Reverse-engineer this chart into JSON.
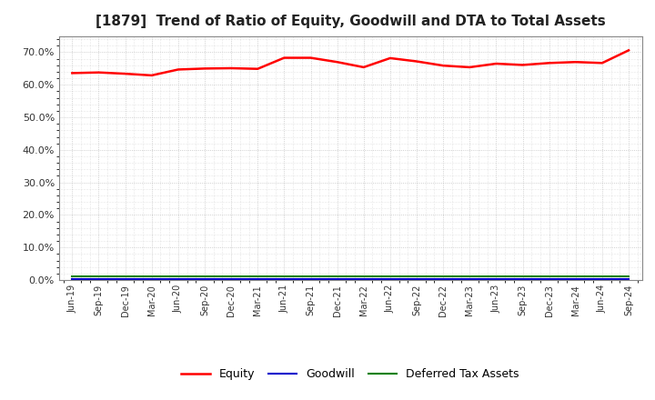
{
  "title": "[1879]  Trend of Ratio of Equity, Goodwill and DTA to Total Assets",
  "x_labels": [
    "Jun-19",
    "Sep-19",
    "Dec-19",
    "Mar-20",
    "Jun-20",
    "Sep-20",
    "Dec-20",
    "Mar-21",
    "Jun-21",
    "Sep-21",
    "Dec-21",
    "Mar-22",
    "Jun-22",
    "Sep-22",
    "Dec-22",
    "Mar-23",
    "Jun-23",
    "Sep-23",
    "Dec-23",
    "Mar-24",
    "Jun-24",
    "Sep-24"
  ],
  "equity": [
    0.636,
    0.638,
    0.634,
    0.629,
    0.647,
    0.65,
    0.651,
    0.649,
    0.683,
    0.683,
    0.67,
    0.654,
    0.682,
    0.672,
    0.659,
    0.654,
    0.665,
    0.661,
    0.667,
    0.67,
    0.667,
    0.706
  ],
  "goodwill": [
    0.003,
    0.003,
    0.003,
    0.003,
    0.003,
    0.003,
    0.003,
    0.003,
    0.003,
    0.003,
    0.003,
    0.003,
    0.003,
    0.003,
    0.003,
    0.003,
    0.003,
    0.003,
    0.003,
    0.003,
    0.003,
    0.003
  ],
  "dta": [
    0.01,
    0.01,
    0.01,
    0.01,
    0.01,
    0.01,
    0.01,
    0.01,
    0.01,
    0.01,
    0.01,
    0.01,
    0.01,
    0.01,
    0.01,
    0.01,
    0.01,
    0.01,
    0.01,
    0.01,
    0.01,
    0.01
  ],
  "equity_color": "#ff0000",
  "goodwill_color": "#0000cc",
  "dta_color": "#008000",
  "ylim": [
    0.0,
    0.75
  ],
  "yticks": [
    0.0,
    0.1,
    0.2,
    0.3,
    0.4,
    0.5,
    0.6,
    0.7
  ],
  "background_color": "#ffffff",
  "plot_bg_color": "#ffffff",
  "grid_color": "#bbbbbb",
  "title_fontsize": 11,
  "legend_labels": [
    "Equity",
    "Goodwill",
    "Deferred Tax Assets"
  ]
}
